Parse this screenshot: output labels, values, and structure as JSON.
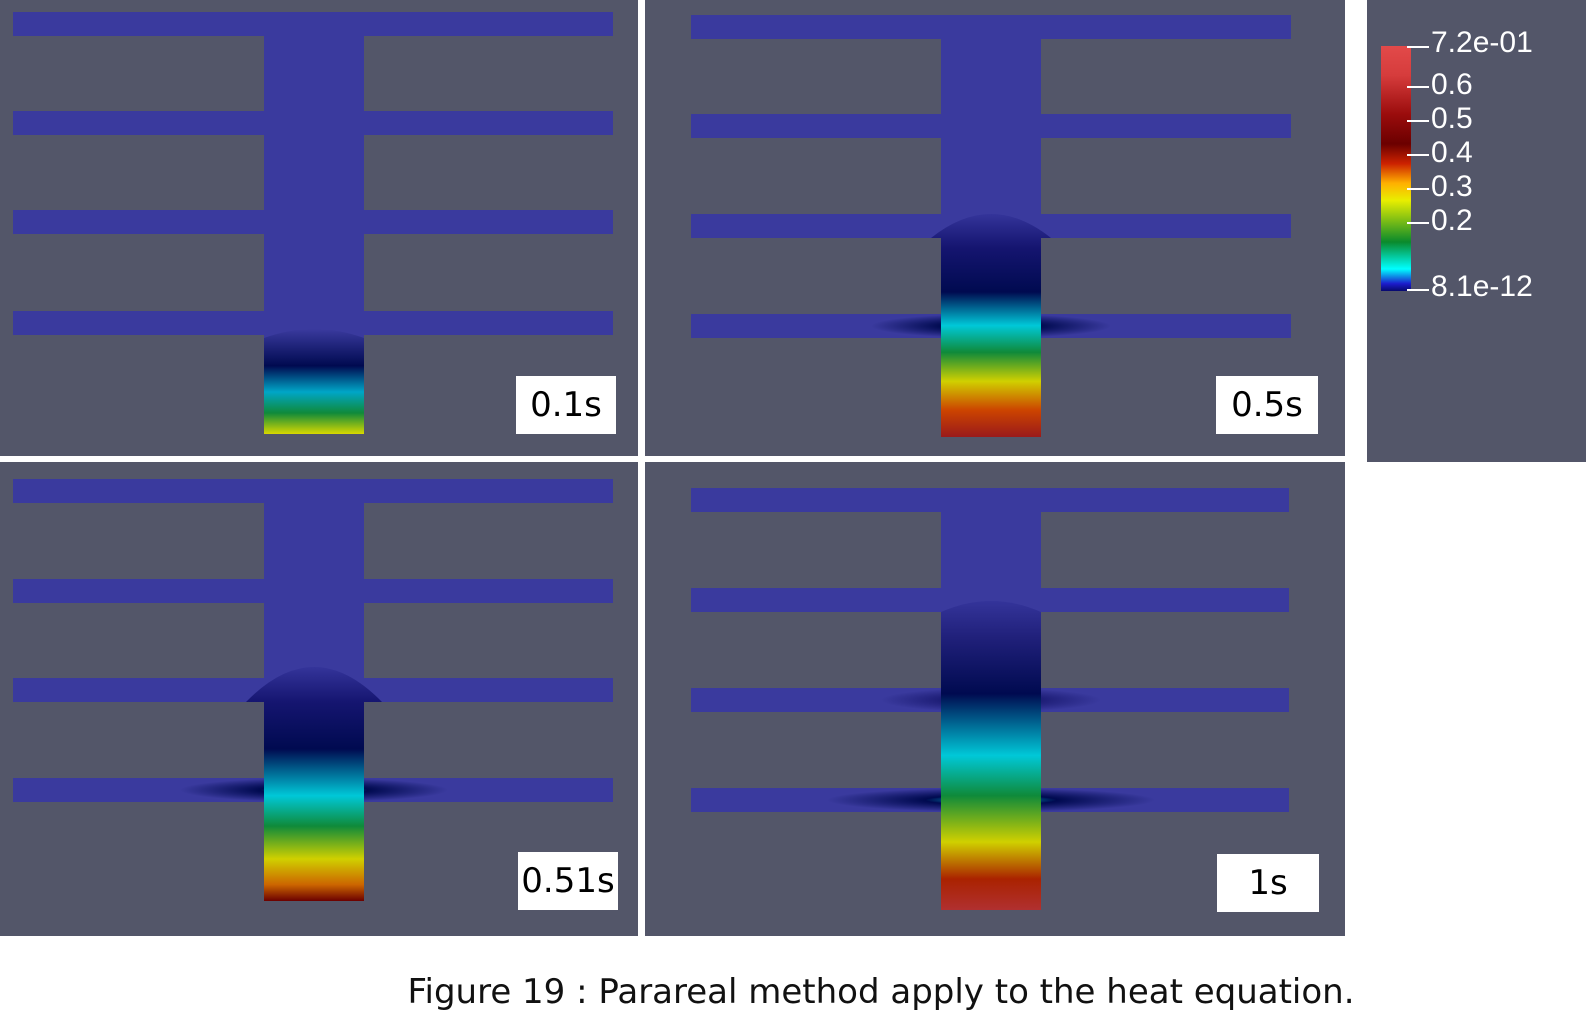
{
  "panels": [
    {
      "time_label": "0.1s"
    },
    {
      "time_label": "0.5s"
    },
    {
      "time_label": "0.51s"
    },
    {
      "time_label": "1s"
    }
  ],
  "colorbar": {
    "max_label": "7.2e-01",
    "ticks": [
      "0.6",
      "0.5",
      "0.4",
      "0.3",
      "0.2"
    ],
    "min_label": "8.1e-12"
  },
  "caption": "Figure 19 : Parareal method apply to the heat equation.",
  "colors": {
    "background": "#535669",
    "domain": "#3a3a9e"
  }
}
